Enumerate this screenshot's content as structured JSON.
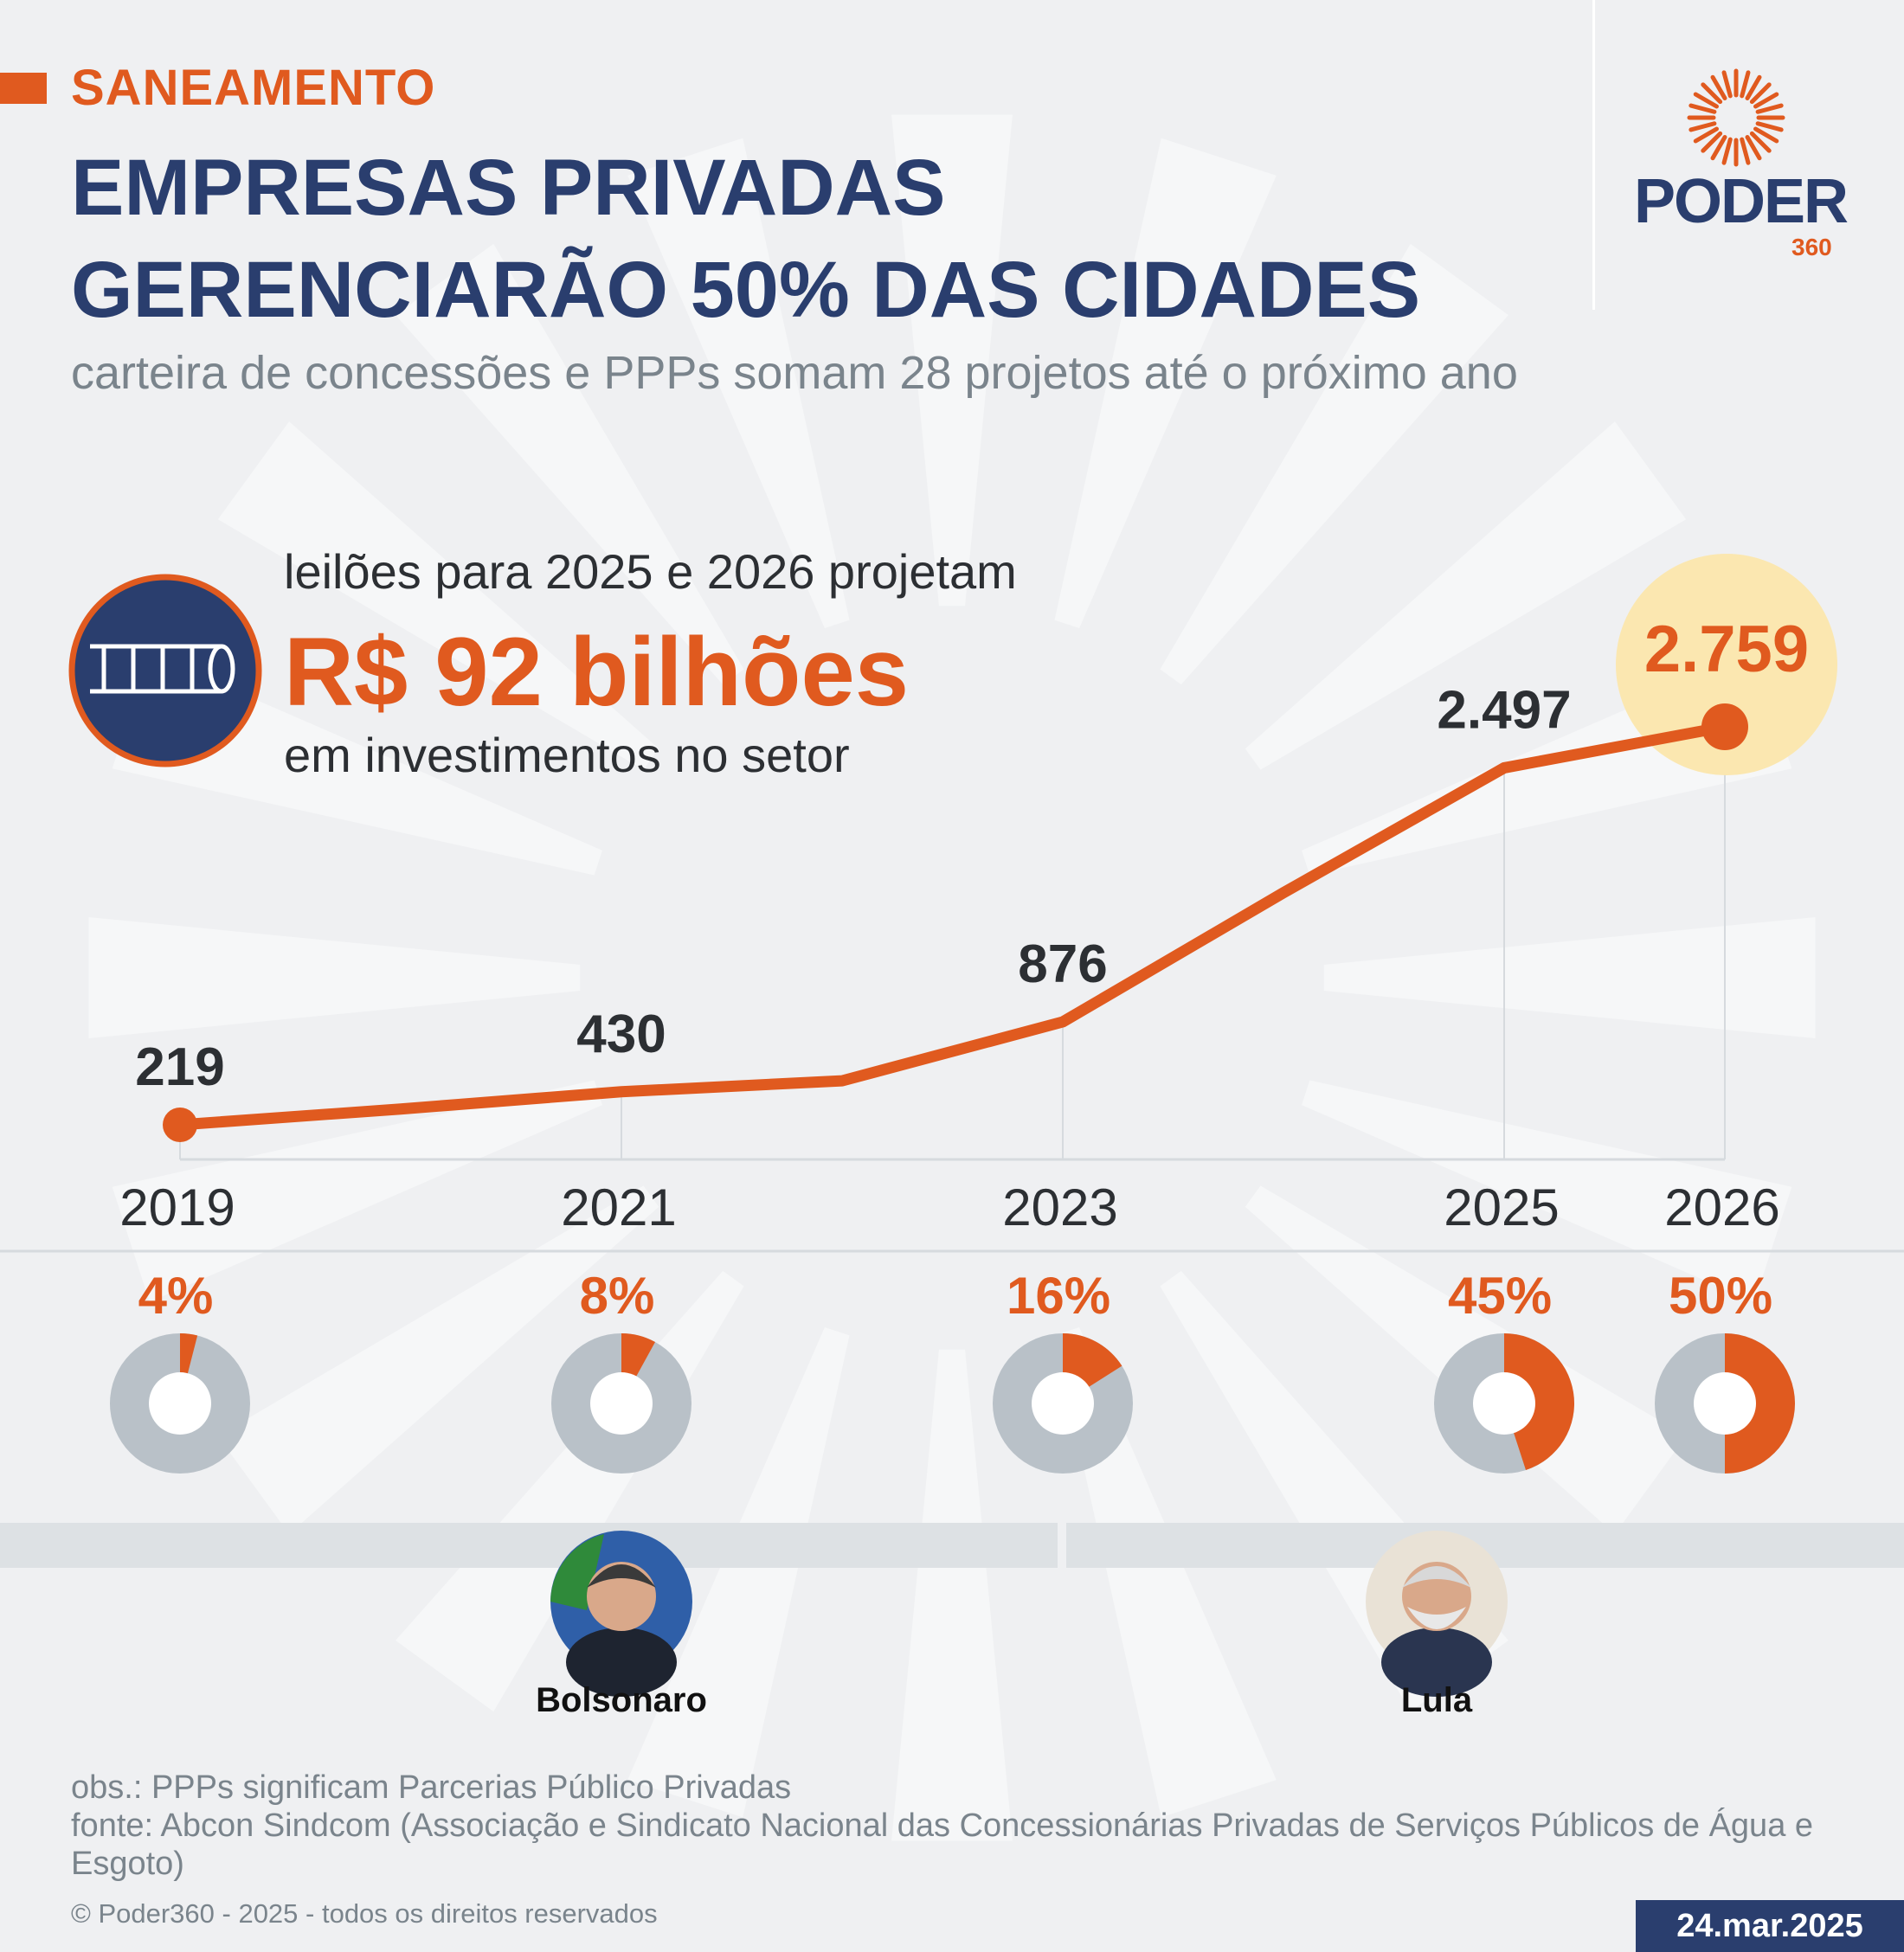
{
  "header": {
    "kicker": "SANEAMENTO",
    "title_line1": "EMPRESAS PRIVADAS",
    "title_line2": "GERENCIARÃO 50% DAS CIDADES",
    "subtitle": "carteira de concessões e PPPs somam 28 projetos até o próximo ano"
  },
  "logo": {
    "word": "PODER",
    "number": "360",
    "icon": "sun-rays-logo-icon"
  },
  "highlight": {
    "icon": "pipe-icon",
    "lead": "leilões para 2025 e 2026 projetam",
    "amount": "R$ 92 bilhões",
    "after": "em investimentos no setor"
  },
  "colors": {
    "accent": "#e05a1f",
    "navy": "#2a3e6e",
    "donut_rest": "#b9c1c8",
    "highlight_circle": "#fbe7b0",
    "background": "#eff0f2"
  },
  "chart_data": {
    "type": "line",
    "x": [
      2019,
      2020,
      2021,
      2022,
      2023,
      2024,
      2025,
      2026
    ],
    "values": [
      219,
      320,
      430,
      500,
      876,
      1700,
      2497,
      2759
    ],
    "labels": [
      {
        "year": "2019",
        "value": "219"
      },
      {
        "year": "2021",
        "value": "430"
      },
      {
        "year": "2023",
        "value": "876"
      },
      {
        "year": "2025",
        "value": "2.497"
      },
      {
        "year": "2026",
        "value": "2.759"
      }
    ],
    "xlim": [
      2019,
      2026
    ],
    "highlight_year": 2026,
    "shares": [
      {
        "year": 2019,
        "label": "4%",
        "value": 4
      },
      {
        "year": 2021,
        "label": "8%",
        "value": 8
      },
      {
        "year": 2023,
        "label": "16%",
        "value": 16
      },
      {
        "year": 2025,
        "label": "45%",
        "value": 45
      },
      {
        "year": 2026,
        "label": "50%",
        "value": 50
      }
    ],
    "governments": [
      {
        "name": "Bolsonaro",
        "from": 2019,
        "to": 2022
      },
      {
        "name": "Lula",
        "from": 2023,
        "to": 2026
      }
    ]
  },
  "footer": {
    "obs": "obs.: PPPs significam Parcerias Público Privadas",
    "source": "fonte: Abcon Sindcom (Associação e Sindicato Nacional das Concessionárias Privadas de Serviços Públicos de Água e Esgoto)",
    "copyright": "© Poder360 - 2025 - todos os direitos reservados",
    "date": "24.mar.2025"
  }
}
